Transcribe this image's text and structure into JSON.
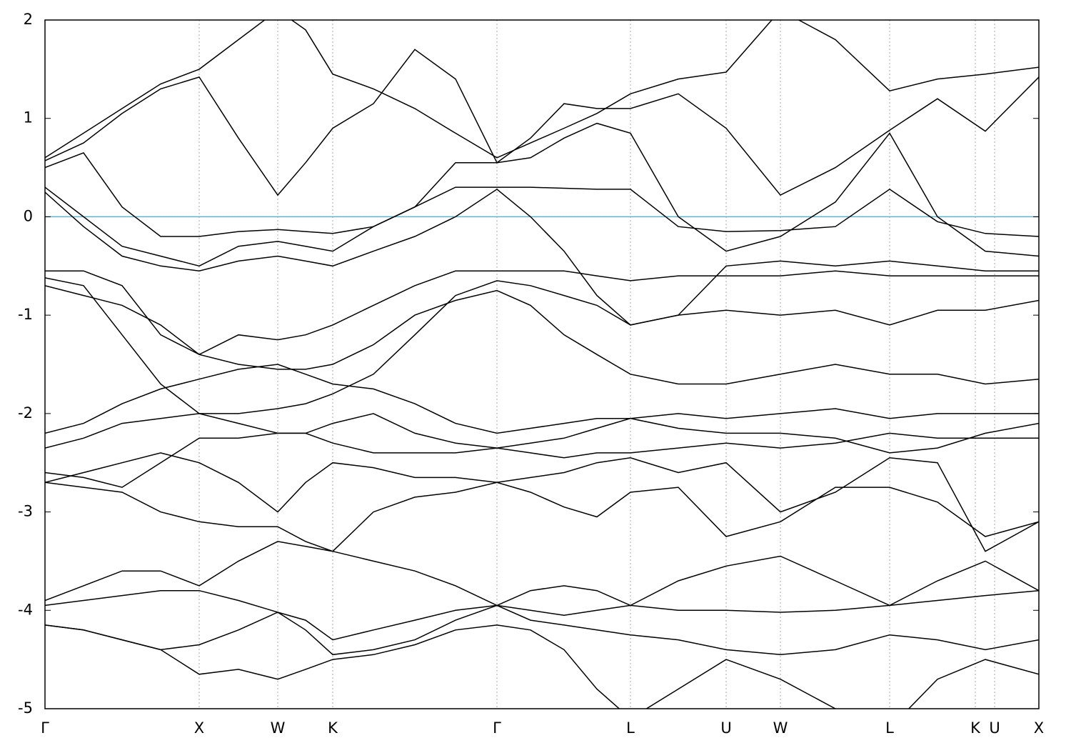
{
  "chart_data": {
    "type": "line",
    "x": [
      0,
      54,
      108,
      162,
      216,
      271,
      326,
      365,
      403,
      460,
      518,
      575,
      633,
      680,
      727,
      773,
      820,
      887,
      954,
      1030,
      1107,
      1183,
      1250,
      1317,
      1392
    ],
    "xlim": [
      0,
      1392
    ],
    "xticks": [
      {
        "value": 0,
        "label": "Γ"
      },
      {
        "value": 216,
        "label": "X"
      },
      {
        "value": 326,
        "label": "W"
      },
      {
        "value": 403,
        "label": "K"
      },
      {
        "value": 633,
        "label": "Γ"
      },
      {
        "value": 820,
        "label": "L"
      },
      {
        "value": 954,
        "label": "U"
      },
      {
        "value": 1030,
        "label": "W"
      },
      {
        "value": 1183,
        "label": "L"
      },
      {
        "value": 1303,
        "label": "K"
      },
      {
        "value": 1330,
        "label": "U"
      },
      {
        "value": 1392,
        "label": "X"
      }
    ],
    "ylim": [
      -5,
      2
    ],
    "yticks": [
      -5,
      -4,
      -3,
      -2,
      -1,
      0,
      1,
      2
    ],
    "grid": "x",
    "reference_line": {
      "y": 0,
      "color": "#5fb3c9"
    },
    "series": [
      {
        "color": "#000000",
        "values": [
          0.6,
          0.85,
          1.1,
          1.35,
          1.5,
          1.8,
          2.1,
          1.9,
          1.45,
          1.3,
          1.1,
          0.85,
          0.6,
          0.75,
          0.9,
          1.05,
          1.25,
          1.4,
          1.47,
          2.1,
          1.8,
          1.28,
          1.4,
          1.45,
          1.52
        ]
      },
      {
        "color": "#000000",
        "values": [
          0.57,
          0.75,
          1.05,
          1.3,
          1.42,
          0.8,
          0.22,
          0.55,
          0.9,
          1.15,
          1.7,
          1.4,
          0.55,
          0.8,
          1.15,
          1.1,
          1.1,
          1.25,
          0.9,
          0.22,
          0.5,
          0.88,
          1.2,
          0.87,
          1.42
        ]
      },
      {
        "color": "#000000",
        "values": [
          0.5,
          0.65,
          0.1,
          -0.2,
          -0.2,
          -0.15,
          -0.13,
          -0.15,
          -0.17,
          -0.1,
          0.1,
          0.3,
          0.3,
          0.3,
          0.29,
          0.28,
          0.28,
          -0.1,
          -0.15,
          -0.14,
          -0.1,
          0.28,
          -0.05,
          -0.17,
          -0.2
        ]
      },
      {
        "color": "#000000",
        "values": [
          0.3,
          0.0,
          -0.3,
          -0.4,
          -0.5,
          -0.3,
          -0.25,
          -0.3,
          -0.35,
          -0.1,
          0.1,
          0.55,
          0.55,
          0.6,
          0.8,
          0.95,
          0.85,
          0.0,
          -0.35,
          -0.2,
          0.15,
          0.85,
          0.0,
          -0.35,
          -0.4
        ]
      },
      {
        "color": "#000000",
        "values": [
          0.25,
          -0.1,
          -0.4,
          -0.5,
          -0.55,
          -0.45,
          -0.4,
          -0.45,
          -0.5,
          -0.35,
          -0.2,
          0.0,
          0.28,
          0.0,
          -0.35,
          -0.8,
          -1.1,
          -1.0,
          -0.5,
          -0.45,
          -0.5,
          -0.45,
          -0.5,
          -0.55,
          -0.55
        ]
      },
      {
        "color": "#000000",
        "values": [
          -0.55,
          -0.55,
          -0.7,
          -1.2,
          -1.4,
          -1.2,
          -1.25,
          -1.2,
          -1.1,
          -0.9,
          -0.7,
          -0.55,
          -0.55,
          -0.55,
          -0.55,
          -0.6,
          -0.65,
          -0.6,
          -0.6,
          -0.6,
          -0.55,
          -0.6,
          -0.6,
          -0.6,
          -0.6
        ]
      },
      {
        "color": "#000000",
        "values": [
          -0.62,
          -0.7,
          -1.2,
          -1.7,
          -2.0,
          -2.0,
          -1.95,
          -1.9,
          -1.8,
          -1.6,
          -1.2,
          -0.8,
          -0.65,
          -0.7,
          -0.8,
          -0.9,
          -1.1,
          -1.0,
          -0.95,
          -1.0,
          -0.95,
          -1.1,
          -0.95,
          -0.95,
          -0.85
        ]
      },
      {
        "color": "#000000",
        "values": [
          -0.7,
          -0.8,
          -0.9,
          -1.1,
          -1.4,
          -1.5,
          -1.55,
          -1.55,
          -1.5,
          -1.3,
          -1.0,
          -0.85,
          -0.75,
          -0.9,
          -1.2,
          -1.4,
          -1.6,
          -1.7,
          -1.7,
          -1.6,
          -1.5,
          -1.6,
          -1.6,
          -1.7,
          -1.65
        ]
      },
      {
        "color": "#000000",
        "values": [
          -2.2,
          -2.1,
          -1.9,
          -1.75,
          -1.65,
          -1.55,
          -1.5,
          -1.6,
          -1.7,
          -1.75,
          -1.9,
          -2.1,
          -2.2,
          -2.15,
          -2.1,
          -2.05,
          -2.05,
          -2.0,
          -2.05,
          -2.0,
          -1.95,
          -2.05,
          -2.0,
          -2.0,
          -2.0
        ]
      },
      {
        "color": "#000000",
        "values": [
          -2.35,
          -2.25,
          -2.1,
          -2.05,
          -2.0,
          -2.1,
          -2.2,
          -2.2,
          -2.1,
          -2.0,
          -2.2,
          -2.3,
          -2.35,
          -2.3,
          -2.25,
          -2.15,
          -2.05,
          -2.15,
          -2.2,
          -2.2,
          -2.25,
          -2.4,
          -2.35,
          -2.2,
          -2.1
        ]
      },
      {
        "color": "#000000",
        "values": [
          -2.6,
          -2.65,
          -2.75,
          -2.5,
          -2.25,
          -2.25,
          -2.2,
          -2.2,
          -2.3,
          -2.4,
          -2.4,
          -2.4,
          -2.35,
          -2.4,
          -2.45,
          -2.4,
          -2.4,
          -2.35,
          -2.3,
          -2.35,
          -2.3,
          -2.2,
          -2.25,
          -2.25,
          -2.25
        ]
      },
      {
        "color": "#000000",
        "values": [
          -2.7,
          -2.75,
          -2.8,
          -3.0,
          -3.1,
          -3.15,
          -3.15,
          -3.3,
          -3.4,
          -3.0,
          -2.85,
          -2.8,
          -2.7,
          -2.8,
          -2.95,
          -3.05,
          -2.8,
          -2.75,
          -3.25,
          -3.1,
          -2.75,
          -2.75,
          -2.9,
          -3.25,
          -3.1
        ]
      },
      {
        "color": "#000000",
        "values": [
          -2.7,
          -2.6,
          -2.5,
          -2.4,
          -2.5,
          -2.7,
          -3.0,
          -2.7,
          -2.5,
          -2.55,
          -2.65,
          -2.65,
          -2.7,
          -2.65,
          -2.6,
          -2.5,
          -2.45,
          -2.6,
          -2.5,
          -3.0,
          -2.8,
          -2.45,
          -2.5,
          -3.4,
          -3.1
        ]
      },
      {
        "color": "#000000",
        "values": [
          -3.9,
          -3.75,
          -3.6,
          -3.6,
          -3.75,
          -3.5,
          -3.3,
          -3.35,
          -3.4,
          -3.5,
          -3.6,
          -3.75,
          -3.95,
          -3.8,
          -3.75,
          -3.8,
          -3.95,
          -3.7,
          -3.55,
          -3.45,
          -3.7,
          -3.95,
          -3.7,
          -3.5,
          -3.8
        ]
      },
      {
        "color": "#000000",
        "values": [
          -3.95,
          -3.9,
          -3.85,
          -3.8,
          -3.8,
          -3.9,
          -4.02,
          -4.1,
          -4.3,
          -4.2,
          -4.1,
          -4.0,
          -3.95,
          -4.0,
          -4.05,
          -4.0,
          -3.95,
          -4.0,
          -4.0,
          -4.02,
          -4.0,
          -3.95,
          -3.9,
          -3.85,
          -3.8
        ]
      },
      {
        "color": "#000000",
        "values": [
          -4.15,
          -4.2,
          -4.3,
          -4.4,
          -4.35,
          -4.2,
          -4.02,
          -4.2,
          -4.45,
          -4.4,
          -4.3,
          -4.1,
          -3.95,
          -4.1,
          -4.15,
          -4.2,
          -4.25,
          -4.3,
          -4.4,
          -4.45,
          -4.4,
          -4.25,
          -4.3,
          -4.4,
          -4.3
        ]
      },
      {
        "color": "#000000",
        "values": [
          -4.15,
          -4.2,
          -4.3,
          -4.4,
          -4.65,
          -4.6,
          -4.7,
          -4.6,
          -4.5,
          -4.45,
          -4.35,
          -4.2,
          -4.15,
          -4.2,
          -4.4,
          -4.8,
          -5.1,
          -4.8,
          -4.5,
          -4.7,
          -5.0,
          -5.2,
          -4.7,
          -4.5,
          -4.65
        ]
      }
    ]
  }
}
